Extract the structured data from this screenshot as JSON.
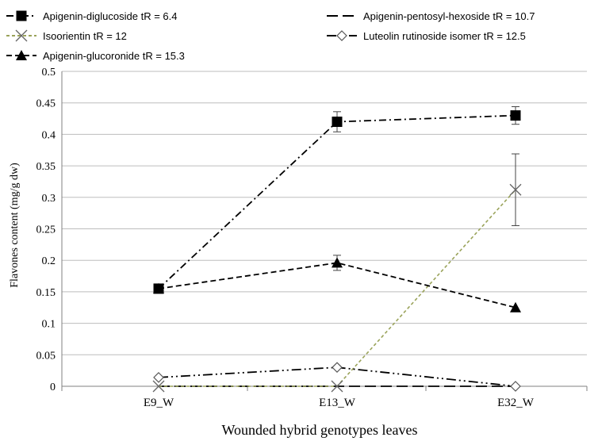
{
  "chart_data": {
    "type": "line",
    "title": "",
    "xlabel": "Wounded hybrid genotypes leaves",
    "ylabel": "Flavones content (mg/g dw)",
    "ylim": [
      0,
      0.5
    ],
    "y_ticks": [
      "0",
      "0.05",
      "0.1",
      "0.15",
      "0.2",
      "0.25",
      "0.3",
      "0.35",
      "0.4",
      "0.45",
      "0.5"
    ],
    "grid": true,
    "legend_position": "top",
    "categories": [
      "E9_W",
      "E13_W",
      "E32_W"
    ],
    "series": [
      {
        "name": "Apigenin-diglucoside tR = 6.4",
        "values": [
          0.155,
          0.42,
          0.43
        ],
        "errors": [
          0.0,
          0.016,
          0.014
        ],
        "color": "#000000",
        "line": "dash-dot",
        "marker": "square"
      },
      {
        "name": "Apigenin-pentosyl-hexoside tR = 10.7",
        "values": [
          0.0,
          0.0,
          0.0
        ],
        "errors": [
          0.0,
          0.0,
          0.0
        ],
        "color": "#000000",
        "line": "long-dash",
        "marker": "none"
      },
      {
        "name": "Isoorientin tR = 12",
        "values": [
          0.0,
          0.0,
          0.312
        ],
        "errors": [
          0.0,
          0.0,
          0.057
        ],
        "color": "#9aa35a",
        "line": "short-dash",
        "marker": "x"
      },
      {
        "name": "Luteolin rutinoside isomer tR = 12.5",
        "values": [
          0.014,
          0.03,
          0.0
        ],
        "errors": [
          0.0,
          0.0,
          0.0
        ],
        "color": "#000000",
        "line": "long-dash-dot-dot",
        "marker": "diamond-open"
      },
      {
        "name": "Apigenin-glucoronide tR = 15.3",
        "values": [
          0.155,
          0.196,
          0.125
        ],
        "errors": [
          0.0,
          0.012,
          0.0
        ],
        "color": "#000000",
        "line": "dash",
        "marker": "triangle"
      }
    ]
  },
  "legend": {
    "items": [
      {
        "label": "Apigenin-diglucoside tR = 6.4",
        "series": 0
      },
      {
        "label": "Apigenin-pentosyl-hexoside tR = 10.7",
        "series": 1
      },
      {
        "label": "Isoorientin tR = 12",
        "series": 2
      },
      {
        "label": "Luteolin rutinoside isomer tR = 12.5",
        "series": 3
      },
      {
        "label": "Apigenin-glucoronide tR = 15.3",
        "series": 4
      }
    ]
  }
}
